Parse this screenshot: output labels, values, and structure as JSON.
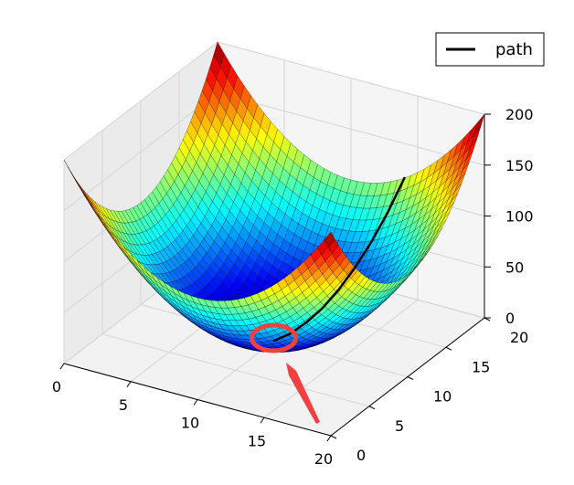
{
  "chart_data": {
    "type": "surface3d",
    "surface_function": "z = (x - 10)^2 + (y - 10)^2",
    "x": {
      "ticks": [
        0,
        5,
        10,
        15,
        20
      ],
      "range": [
        0,
        20
      ]
    },
    "y": {
      "ticks": [
        0,
        5,
        10,
        15,
        20
      ],
      "range": [
        0,
        20
      ]
    },
    "z": {
      "ticks": [
        0,
        50,
        100,
        150,
        200
      ],
      "range": [
        0,
        200
      ]
    },
    "grid": true,
    "colormap": "jet",
    "series": [
      {
        "name": "path",
        "color": "#000000",
        "points": [
          [
            10,
            10,
            0
          ],
          [
            10.5,
            11.2,
            1.7
          ],
          [
            11,
            12.5,
            7.3
          ],
          [
            11.5,
            13.7,
            16
          ],
          [
            12,
            15,
            29
          ],
          [
            12.5,
            16.2,
            45
          ],
          [
            13,
            17.5,
            65
          ],
          [
            13.5,
            18.7,
            88
          ],
          [
            14,
            20,
            116
          ]
        ]
      }
    ],
    "legend": {
      "position": "top-right",
      "entries": [
        "path"
      ]
    },
    "annotations": [
      {
        "type": "circle",
        "color": "#f04040",
        "target": "surface minimum"
      },
      {
        "type": "arrow",
        "color": "#f04040",
        "target": "surface minimum"
      }
    ]
  }
}
